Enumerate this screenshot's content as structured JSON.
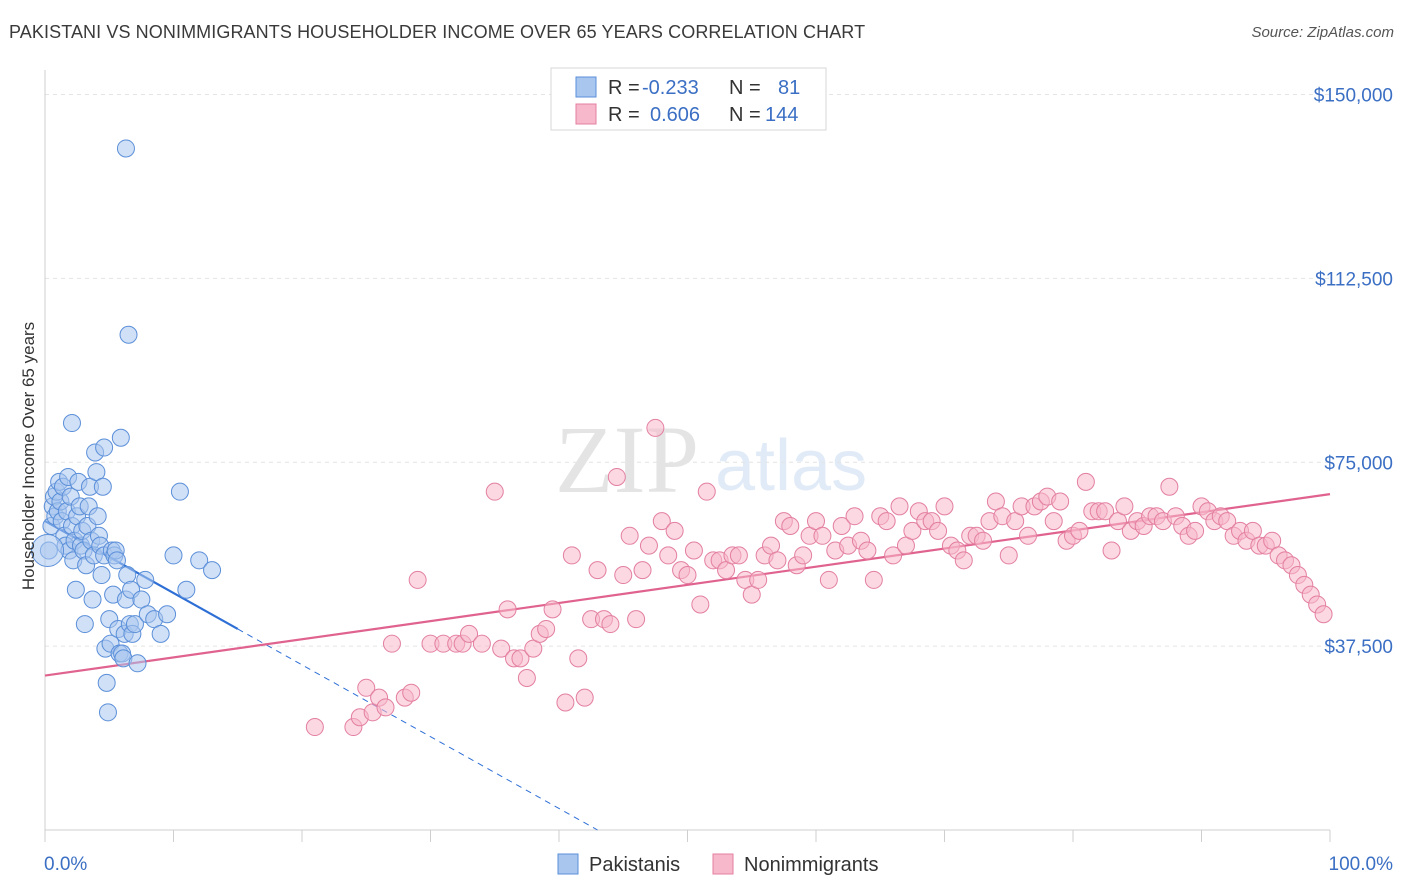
{
  "header": {
    "title": "PAKISTANI VS NONIMMIGRANTS HOUSEHOLDER INCOME OVER 65 YEARS CORRELATION CHART",
    "source": "Source: ZipAtlas.com"
  },
  "watermark": {
    "zip": "ZIP",
    "atlas": "atlas"
  },
  "legend": {
    "rows": [
      {
        "r_label": "R =",
        "r_value": "-0.233",
        "n_label": "N =",
        "n_value": "81",
        "color": "#a9c6ef",
        "stroke": "#5b8fd9"
      },
      {
        "r_label": "R =",
        "r_value": "0.606",
        "n_label": "N =",
        "n_value": "144",
        "color": "#f7b8cb",
        "stroke": "#e37fa0"
      }
    ]
  },
  "bottom_legend": [
    {
      "label": "Pakistanis",
      "color": "#a9c6ef",
      "stroke": "#5b8fd9"
    },
    {
      "label": "Nonimmigrants",
      "color": "#f7b8cb",
      "stroke": "#e37fa0"
    }
  ],
  "chart_data": {
    "type": "scatter",
    "title": "PAKISTANI VS NONIMMIGRANTS HOUSEHOLDER INCOME OVER 65 YEARS CORRELATION CHART",
    "xlabel": "",
    "ylabel": "Householder Income Over 65 years",
    "xlim": [
      0,
      100
    ],
    "ylim": [
      0,
      155000
    ],
    "x_tick_labels": [
      "0.0%",
      "100.0%"
    ],
    "y_ticks": [
      37500,
      75000,
      112500,
      150000
    ],
    "y_tick_labels": [
      "$37,500",
      "$75,000",
      "$112,500",
      "$150,000"
    ],
    "grid": true,
    "series": [
      {
        "name": "Pakistanis",
        "color": "#a9c6ef",
        "stroke": "#5b8fd9",
        "trend": {
          "x0": 0,
          "y0": 63000,
          "x1": 15,
          "y1": 41000,
          "dash_to_x": 43,
          "dash_to_y": 0
        },
        "points": [
          [
            0.3,
            57000
          ],
          [
            0.5,
            62000
          ],
          [
            0.6,
            66000
          ],
          [
            0.7,
            68000
          ],
          [
            0.8,
            64000
          ],
          [
            0.9,
            69000
          ],
          [
            1.0,
            65000
          ],
          [
            1.1,
            71000
          ],
          [
            1.2,
            67000
          ],
          [
            1.3,
            63000
          ],
          [
            1.4,
            70000
          ],
          [
            1.5,
            60000
          ],
          [
            1.6,
            58000
          ],
          [
            1.7,
            65000
          ],
          [
            1.8,
            72000
          ],
          [
            1.9,
            57000
          ],
          [
            2.0,
            68000
          ],
          [
            2.1,
            62000
          ],
          [
            2.2,
            55000
          ],
          [
            2.3,
            59000
          ],
          [
            2.4,
            49000
          ],
          [
            2.5,
            64000
          ],
          [
            2.6,
            71000
          ],
          [
            2.7,
            66000
          ],
          [
            2.8,
            58000
          ],
          [
            2.9,
            61000
          ],
          [
            3.0,
            57000
          ],
          [
            3.1,
            42000
          ],
          [
            3.2,
            54000
          ],
          [
            3.3,
            62000
          ],
          [
            3.4,
            66000
          ],
          [
            3.5,
            70000
          ],
          [
            3.6,
            59000
          ],
          [
            3.7,
            47000
          ],
          [
            3.8,
            56000
          ],
          [
            3.9,
            77000
          ],
          [
            4.0,
            73000
          ],
          [
            4.1,
            64000
          ],
          [
            4.2,
            60000
          ],
          [
            4.3,
            58000
          ],
          [
            4.4,
            52000
          ],
          [
            4.5,
            70000
          ],
          [
            4.6,
            56000
          ],
          [
            4.7,
            37000
          ],
          [
            4.8,
            30000
          ],
          [
            4.9,
            24000
          ],
          [
            5.0,
            43000
          ],
          [
            5.1,
            38000
          ],
          [
            5.2,
            57000
          ],
          [
            5.3,
            48000
          ],
          [
            5.4,
            56000
          ],
          [
            5.5,
            57000
          ],
          [
            5.6,
            55000
          ],
          [
            5.7,
            41000
          ],
          [
            5.8,
            36000
          ],
          [
            5.9,
            80000
          ],
          [
            6.0,
            36000
          ],
          [
            6.1,
            35000
          ],
          [
            6.2,
            40000
          ],
          [
            6.3,
            47000
          ],
          [
            6.4,
            52000
          ],
          [
            6.5,
            101000
          ],
          [
            6.6,
            42000
          ],
          [
            6.7,
            49000
          ],
          [
            6.8,
            40000
          ],
          [
            7.0,
            42000
          ],
          [
            7.2,
            34000
          ],
          [
            7.5,
            47000
          ],
          [
            7.8,
            51000
          ],
          [
            8.0,
            44000
          ],
          [
            8.5,
            43000
          ],
          [
            9.0,
            40000
          ],
          [
            9.5,
            44000
          ],
          [
            10.0,
            56000
          ],
          [
            10.5,
            69000
          ],
          [
            11.0,
            49000
          ],
          [
            12.0,
            55000
          ],
          [
            13.0,
            53000
          ],
          [
            6.3,
            139000
          ],
          [
            2.1,
            83000
          ],
          [
            4.6,
            78000
          ]
        ]
      },
      {
        "name": "Nonimmigrants",
        "color": "#f7b8cb",
        "stroke": "#e37fa0",
        "trend": {
          "x0": 0,
          "y0": 31500,
          "x1": 100,
          "y1": 68500
        },
        "points": [
          [
            21,
            21000
          ],
          [
            24,
            21000
          ],
          [
            24.5,
            23000
          ],
          [
            25,
            29000
          ],
          [
            25.5,
            24000
          ],
          [
            26,
            27000
          ],
          [
            26.5,
            25000
          ],
          [
            27,
            38000
          ],
          [
            28,
            27000
          ],
          [
            28.5,
            28000
          ],
          [
            29,
            51000
          ],
          [
            30,
            38000
          ],
          [
            31,
            38000
          ],
          [
            32,
            38000
          ],
          [
            32.5,
            38000
          ],
          [
            33,
            40000
          ],
          [
            34,
            38000
          ],
          [
            35,
            69000
          ],
          [
            35.5,
            37000
          ],
          [
            36,
            45000
          ],
          [
            36.5,
            35000
          ],
          [
            37,
            35000
          ],
          [
            37.5,
            31000
          ],
          [
            38,
            37000
          ],
          [
            38.5,
            40000
          ],
          [
            39,
            41000
          ],
          [
            39.5,
            45000
          ],
          [
            40.5,
            26000
          ],
          [
            41,
            56000
          ],
          [
            41.5,
            35000
          ],
          [
            42,
            27000
          ],
          [
            42.5,
            43000
          ],
          [
            43,
            53000
          ],
          [
            43.5,
            43000
          ],
          [
            44,
            42000
          ],
          [
            44.5,
            72000
          ],
          [
            45,
            52000
          ],
          [
            45.5,
            60000
          ],
          [
            46,
            43000
          ],
          [
            46.5,
            53000
          ],
          [
            47,
            58000
          ],
          [
            47.5,
            82000
          ],
          [
            48,
            63000
          ],
          [
            48.5,
            56000
          ],
          [
            49,
            61000
          ],
          [
            49.5,
            53000
          ],
          [
            50,
            52000
          ],
          [
            50.5,
            57000
          ],
          [
            51,
            46000
          ],
          [
            51.5,
            69000
          ],
          [
            52,
            55000
          ],
          [
            52.5,
            55000
          ],
          [
            53,
            53000
          ],
          [
            53.5,
            56000
          ],
          [
            54,
            56000
          ],
          [
            54.5,
            51000
          ],
          [
            55,
            48000
          ],
          [
            55.5,
            51000
          ],
          [
            56,
            56000
          ],
          [
            56.5,
            58000
          ],
          [
            57,
            55000
          ],
          [
            57.5,
            63000
          ],
          [
            58,
            62000
          ],
          [
            58.5,
            54000
          ],
          [
            59,
            56000
          ],
          [
            59.5,
            60000
          ],
          [
            60,
            63000
          ],
          [
            60.5,
            60000
          ],
          [
            61,
            51000
          ],
          [
            61.5,
            57000
          ],
          [
            62,
            62000
          ],
          [
            62.5,
            58000
          ],
          [
            63,
            64000
          ],
          [
            63.5,
            59000
          ],
          [
            64,
            57000
          ],
          [
            64.5,
            51000
          ],
          [
            65,
            64000
          ],
          [
            65.5,
            63000
          ],
          [
            66,
            56000
          ],
          [
            66.5,
            66000
          ],
          [
            67,
            58000
          ],
          [
            67.5,
            61000
          ],
          [
            68,
            65000
          ],
          [
            68.5,
            63000
          ],
          [
            69,
            63000
          ],
          [
            69.5,
            61000
          ],
          [
            70,
            66000
          ],
          [
            70.5,
            58000
          ],
          [
            71,
            57000
          ],
          [
            71.5,
            55000
          ],
          [
            72,
            60000
          ],
          [
            72.5,
            60000
          ],
          [
            73,
            59000
          ],
          [
            73.5,
            63000
          ],
          [
            74,
            67000
          ],
          [
            74.5,
            64000
          ],
          [
            75,
            56000
          ],
          [
            75.5,
            63000
          ],
          [
            76,
            66000
          ],
          [
            76.5,
            60000
          ],
          [
            77,
            66000
          ],
          [
            77.5,
            67000
          ],
          [
            78,
            68000
          ],
          [
            78.5,
            63000
          ],
          [
            79,
            67000
          ],
          [
            79.5,
            59000
          ],
          [
            80,
            60000
          ],
          [
            80.5,
            61000
          ],
          [
            81,
            71000
          ],
          [
            81.5,
            65000
          ],
          [
            82,
            65000
          ],
          [
            82.5,
            65000
          ],
          [
            83,
            57000
          ],
          [
            83.5,
            63000
          ],
          [
            84,
            66000
          ],
          [
            84.5,
            61000
          ],
          [
            85,
            63000
          ],
          [
            85.5,
            62000
          ],
          [
            86,
            64000
          ],
          [
            86.5,
            64000
          ],
          [
            87,
            63000
          ],
          [
            87.5,
            70000
          ],
          [
            88,
            64000
          ],
          [
            88.5,
            62000
          ],
          [
            89,
            60000
          ],
          [
            89.5,
            61000
          ],
          [
            90,
            66000
          ],
          [
            90.5,
            65000
          ],
          [
            91,
            63000
          ],
          [
            91.5,
            64000
          ],
          [
            92,
            63000
          ],
          [
            92.5,
            60000
          ],
          [
            93,
            61000
          ],
          [
            93.5,
            59000
          ],
          [
            94,
            61000
          ],
          [
            94.5,
            58000
          ],
          [
            95,
            58000
          ],
          [
            95.5,
            59000
          ],
          [
            96,
            56000
          ],
          [
            96.5,
            55000
          ],
          [
            97,
            54000
          ],
          [
            97.5,
            52000
          ],
          [
            98,
            50000
          ],
          [
            98.5,
            48000
          ],
          [
            99,
            46000
          ],
          [
            99.5,
            44000
          ]
        ]
      }
    ]
  }
}
